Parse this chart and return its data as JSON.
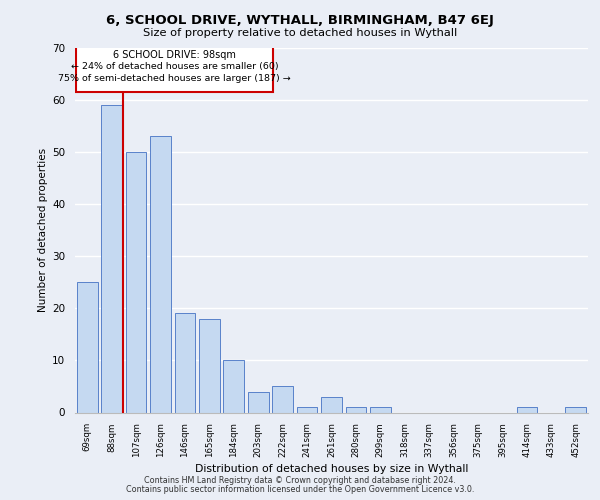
{
  "title1": "6, SCHOOL DRIVE, WYTHALL, BIRMINGHAM, B47 6EJ",
  "title2": "Size of property relative to detached houses in Wythall",
  "xlabel": "Distribution of detached houses by size in Wythall",
  "ylabel": "Number of detached properties",
  "categories": [
    "69sqm",
    "88sqm",
    "107sqm",
    "126sqm",
    "146sqm",
    "165sqm",
    "184sqm",
    "203sqm",
    "222sqm",
    "241sqm",
    "261sqm",
    "280sqm",
    "299sqm",
    "318sqm",
    "337sqm",
    "356sqm",
    "375sqm",
    "395sqm",
    "414sqm",
    "433sqm",
    "452sqm"
  ],
  "values": [
    25,
    59,
    50,
    53,
    19,
    18,
    10,
    4,
    5,
    1,
    3,
    1,
    1,
    0,
    0,
    0,
    0,
    0,
    1,
    0,
    1
  ],
  "bar_color": "#c5d9f1",
  "bar_edge_color": "#4472c4",
  "annotation_title": "6 SCHOOL DRIVE: 98sqm",
  "annotation_line1": "← 24% of detached houses are smaller (60)",
  "annotation_line2": "75% of semi-detached houses are larger (187) →",
  "ylim": [
    0,
    70
  ],
  "yticks": [
    0,
    10,
    20,
    30,
    40,
    50,
    60,
    70
  ],
  "footer1": "Contains HM Land Registry data © Crown copyright and database right 2024.",
  "footer2": "Contains public sector information licensed under the Open Government Licence v3.0.",
  "bg_color": "#eaeef6",
  "plot_bg_color": "#eaeef6",
  "grid_color": "#ffffff",
  "red_line_color": "#cc0000",
  "box_color": "#cc0000"
}
